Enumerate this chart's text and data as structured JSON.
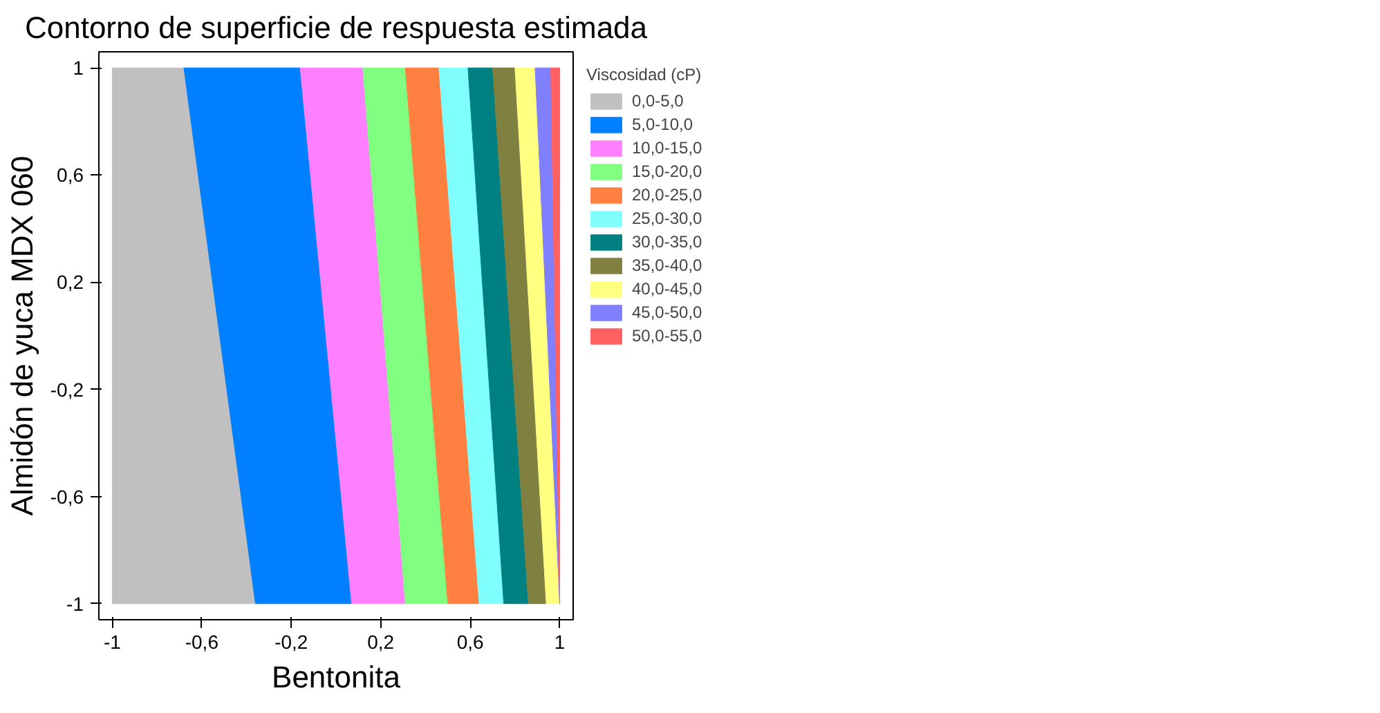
{
  "chart_data": {
    "type": "area",
    "title": "Contorno de superficie de respuesta estimada",
    "xlabel": "Bentonita",
    "ylabel": "Almidón de yuca MDX 060",
    "legend_title": "Viscosidad (cP)",
    "series": [
      {
        "name": "0,0-5,0",
        "color": "#c0c0c0",
        "x": [
          -1,
          -0.68,
          -0.36,
          -1
        ],
        "values": [
          1,
          1,
          -1,
          -1
        ]
      },
      {
        "name": "5,0-10,0",
        "color": "#0080ff",
        "x": [
          -0.68,
          -0.16,
          0.07,
          -0.36
        ],
        "values": [
          1,
          1,
          -1,
          -1
        ]
      },
      {
        "name": "10,0-15,0",
        "color": "#ff80ff",
        "x": [
          -0.16,
          0.12,
          0.31,
          0.07
        ],
        "values": [
          1,
          1,
          -1,
          -1
        ]
      },
      {
        "name": "15,0-20,0",
        "color": "#80ff80",
        "x": [
          0.12,
          0.31,
          0.5,
          0.31
        ],
        "values": [
          1,
          1,
          -1,
          -1
        ]
      },
      {
        "name": "20,0-25,0",
        "color": "#ff8040",
        "x": [
          0.31,
          0.46,
          0.64,
          0.5
        ],
        "values": [
          1,
          1,
          -1,
          -1
        ]
      },
      {
        "name": "25,0-30,0",
        "color": "#80ffff",
        "x": [
          0.46,
          0.59,
          0.75,
          0.64
        ],
        "values": [
          1,
          1,
          -1,
          -1
        ]
      },
      {
        "name": "30,0-35,0",
        "color": "#008080",
        "x": [
          0.59,
          0.7,
          0.86,
          0.75
        ],
        "values": [
          1,
          1,
          -1,
          -1
        ]
      },
      {
        "name": "35,0-40,0",
        "color": "#808040",
        "x": [
          0.7,
          0.8,
          0.94,
          0.86
        ],
        "values": [
          1,
          1,
          -1,
          -1
        ]
      },
      {
        "name": "40,0-45,0",
        "color": "#ffff80",
        "x": [
          0.8,
          0.89,
          1,
          0.94
        ],
        "values": [
          1,
          1,
          -1,
          -1
        ]
      },
      {
        "name": "45,0-50,0",
        "color": "#8080ff",
        "x": [
          0.89,
          0.96,
          1
        ],
        "values": [
          1,
          1,
          -1
        ]
      },
      {
        "name": "50,0-55,0",
        "color": "#ff6060",
        "x": [
          0.96,
          1,
          1
        ],
        "values": [
          1,
          1,
          -1
        ]
      }
    ],
    "xlim": [
      -1.06,
      1.06
    ],
    "ylim": [
      -1.06,
      1.06
    ],
    "xticks": [
      {
        "value": -1,
        "label": "-1"
      },
      {
        "value": -0.6,
        "label": "-0,6"
      },
      {
        "value": -0.2,
        "label": "-0,2"
      },
      {
        "value": 0.2,
        "label": "0,2"
      },
      {
        "value": 0.6,
        "label": "0,6"
      },
      {
        "value": 1,
        "label": "1"
      }
    ],
    "yticks": [
      {
        "value": -1,
        "label": "-1"
      },
      {
        "value": -0.6,
        "label": "-0,6"
      },
      {
        "value": -0.2,
        "label": "-0,2"
      },
      {
        "value": 0.2,
        "label": "0,2"
      },
      {
        "value": 0.6,
        "label": "0,6"
      },
      {
        "value": 1,
        "label": "1"
      }
    ],
    "grid": false,
    "legend": "right"
  }
}
